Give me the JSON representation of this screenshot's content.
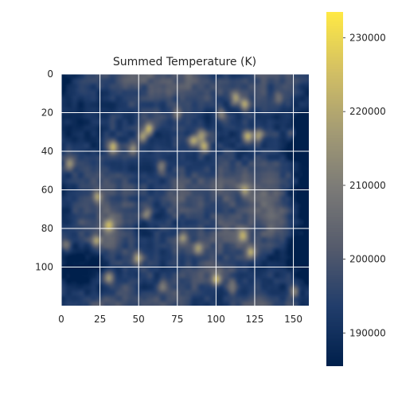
{
  "chart_data": {
    "type": "heatmap",
    "title": "Summed Temperature (K)",
    "xlabel": "",
    "ylabel": "",
    "x_range": [
      0,
      160
    ],
    "y_range": [
      120,
      0
    ],
    "x_ticks": [
      {
        "value": 0,
        "label": "0"
      },
      {
        "value": 25,
        "label": "25"
      },
      {
        "value": 50,
        "label": "50"
      },
      {
        "value": 75,
        "label": "75"
      },
      {
        "value": 100,
        "label": "100"
      },
      {
        "value": 125,
        "label": "125"
      },
      {
        "value": 150,
        "label": "150"
      }
    ],
    "y_ticks": [
      {
        "value": 0,
        "label": "0"
      },
      {
        "value": 20,
        "label": "20"
      },
      {
        "value": 40,
        "label": "40"
      },
      {
        "value": 60,
        "label": "60"
      },
      {
        "value": 80,
        "label": "80"
      },
      {
        "value": 100,
        "label": "100"
      }
    ],
    "grid": true,
    "grid_color": "#ffffff",
    "colormap": "cividis",
    "colorbar": {
      "range": [
        185500,
        233500
      ],
      "ticks": [
        {
          "value": 190000,
          "label": "190000"
        },
        {
          "value": 200000,
          "label": "200000"
        },
        {
          "value": 210000,
          "label": "210000"
        },
        {
          "value": 220000,
          "label": "220000"
        },
        {
          "value": 230000,
          "label": "230000"
        }
      ]
    },
    "colormap_stops": [
      "#00204c",
      "#213d6b",
      "#555b6c",
      "#7b7a77",
      "#a59c74",
      "#d3c064",
      "#ffe945"
    ],
    "hotspots": [
      {
        "x": 33,
        "y": 37,
        "value": 230000
      },
      {
        "x": 46,
        "y": 38,
        "value": 226000
      },
      {
        "x": 52,
        "y": 32,
        "value": 229000
      },
      {
        "x": 56,
        "y": 28,
        "value": 230000
      },
      {
        "x": 85,
        "y": 34,
        "value": 233000
      },
      {
        "x": 92,
        "y": 37,
        "value": 232000
      },
      {
        "x": 90,
        "y": 31,
        "value": 228000
      },
      {
        "x": 112,
        "y": 12,
        "value": 229000
      },
      {
        "x": 118,
        "y": 15,
        "value": 228000
      },
      {
        "x": 120,
        "y": 32,
        "value": 231000
      },
      {
        "x": 127,
        "y": 31,
        "value": 229000
      },
      {
        "x": 23,
        "y": 63,
        "value": 228000
      },
      {
        "x": 30,
        "y": 78,
        "value": 224000
      },
      {
        "x": 22,
        "y": 86,
        "value": 226000
      },
      {
        "x": 30,
        "y": 105,
        "value": 228000
      },
      {
        "x": 49,
        "y": 95,
        "value": 225000
      },
      {
        "x": 55,
        "y": 72,
        "value": 222000
      },
      {
        "x": 78,
        "y": 84,
        "value": 226000
      },
      {
        "x": 88,
        "y": 90,
        "value": 224000
      },
      {
        "x": 100,
        "y": 106,
        "value": 230000
      },
      {
        "x": 117,
        "y": 83,
        "value": 226000
      },
      {
        "x": 122,
        "y": 92,
        "value": 228000
      },
      {
        "x": 118,
        "y": 60,
        "value": 222000
      },
      {
        "x": 150,
        "y": 112,
        "value": 225000
      },
      {
        "x": 5,
        "y": 46,
        "value": 224000
      },
      {
        "x": 3,
        "y": 88,
        "value": 222000
      },
      {
        "x": 64,
        "y": 48,
        "value": 222000
      },
      {
        "x": 75,
        "y": 20,
        "value": 220000
      },
      {
        "x": 103,
        "y": 20,
        "value": 221000
      },
      {
        "x": 140,
        "y": 12,
        "value": 218000
      },
      {
        "x": 65,
        "y": 110,
        "value": 222000
      },
      {
        "x": 110,
        "y": 110,
        "value": 221000
      },
      {
        "x": 148,
        "y": 30,
        "value": 220000
      }
    ],
    "cold_regions": [
      {
        "x": 10,
        "y": 35,
        "value": 189000
      },
      {
        "x": 12,
        "y": 98,
        "value": 188000
      },
      {
        "x": 150,
        "y": 30,
        "value": 188000
      },
      {
        "x": 157,
        "y": 60,
        "value": 187000
      },
      {
        "x": 152,
        "y": 90,
        "value": 189000
      },
      {
        "x": 2,
        "y": 20,
        "value": 192000
      },
      {
        "x": 45,
        "y": 55,
        "value": 196000
      },
      {
        "x": 105,
        "y": 75,
        "value": 197000
      },
      {
        "x": 70,
        "y": 100,
        "value": 197000
      },
      {
        "x": 140,
        "y": 105,
        "value": 193000
      }
    ]
  }
}
